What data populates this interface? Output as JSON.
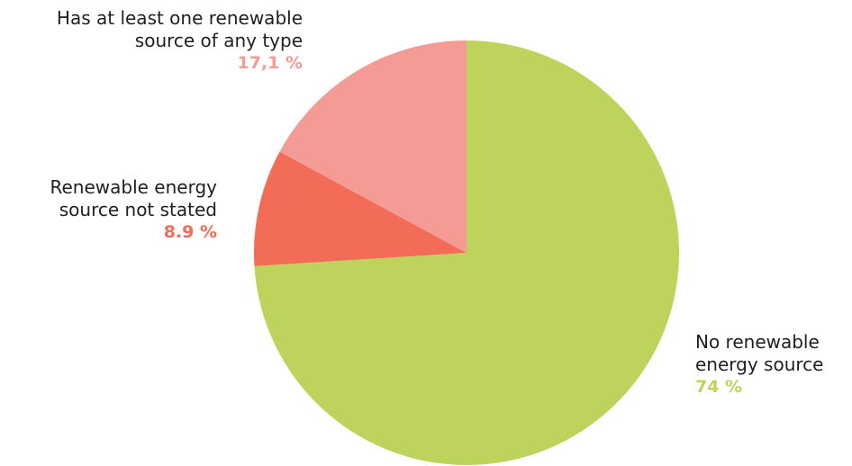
{
  "chart_data": {
    "type": "pie",
    "slices": [
      {
        "label_lines": [
          "No renewable",
          "energy source"
        ],
        "percent_text": "74 %",
        "value": 74.0,
        "color": "#bdd35c"
      },
      {
        "label_lines": [
          "Renewable energy",
          "source not stated"
        ],
        "percent_text": "8.9 %",
        "value": 8.9,
        "color": "#f26c57"
      },
      {
        "label_lines": [
          "Has at least one renewable",
          "source of any type"
        ],
        "percent_text": "17,1 %",
        "value": 17.1,
        "color": "#f49b96"
      }
    ],
    "start_angle": "12 o'clock",
    "direction": "clockwise",
    "legend": "none"
  }
}
